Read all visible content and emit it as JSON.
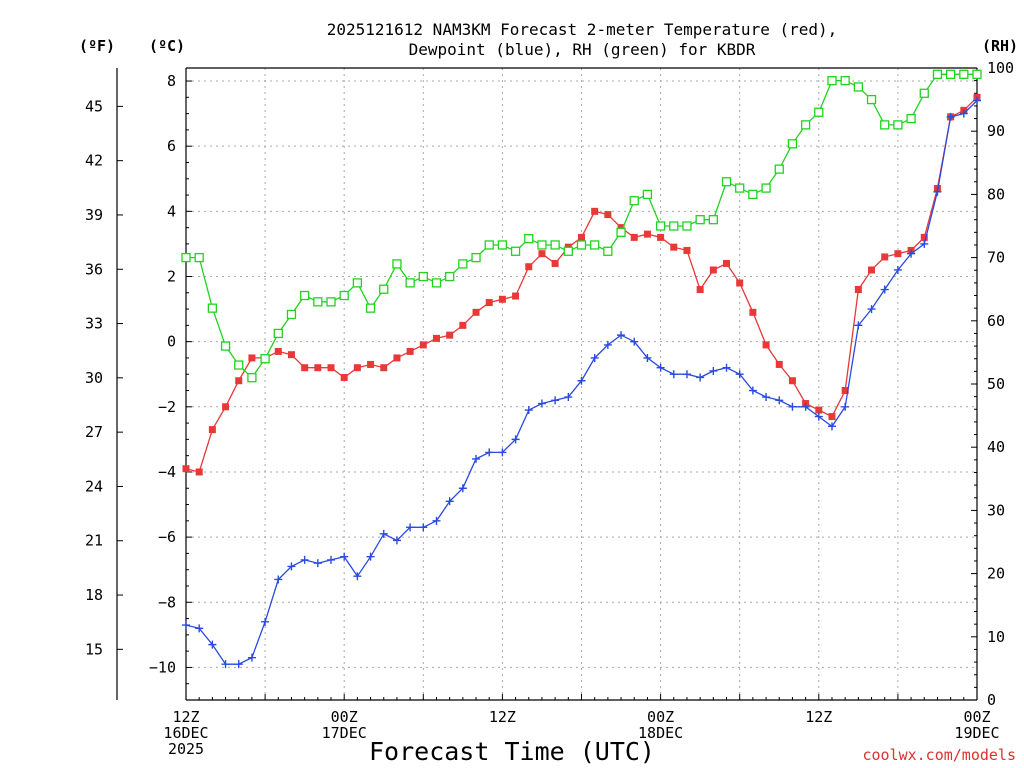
{
  "chart_data": {
    "type": "line",
    "title_lines": [
      "2025121612 NAM3KM Forecast 2-meter Temperature (red),",
      "Dewpoint (blue), RH (green) for KBDR"
    ],
    "xlabel": "Forecast Time (UTC)",
    "credit": "coolwx.com/models",
    "units": {
      "fahrenheit": "(ºF)",
      "celsius": "(ºC)",
      "rh": "(RH)"
    },
    "hours_range": [
      0,
      60
    ],
    "x_ticks": [
      {
        "hour": 0,
        "lines": [
          "12Z",
          "16DEC",
          "2025"
        ]
      },
      {
        "hour": 12,
        "lines": [
          "00Z",
          "17DEC"
        ]
      },
      {
        "hour": 24,
        "lines": [
          "12Z"
        ]
      },
      {
        "hour": 36,
        "lines": [
          "00Z",
          "18DEC"
        ]
      },
      {
        "hour": 48,
        "lines": [
          "12Z"
        ]
      },
      {
        "hour": 60,
        "lines": [
          "00Z",
          "19DEC"
        ]
      }
    ],
    "celsius_axis": {
      "range": [
        -11,
        8.4
      ],
      "ticks": [
        8,
        6,
        4,
        2,
        0,
        -2,
        -4,
        -6,
        -8,
        -10
      ],
      "tick_labels": [
        "8",
        "6",
        "4",
        "2",
        "0",
        "−2",
        "−4",
        "−6",
        "−8",
        "−10"
      ]
    },
    "fahrenheit_axis": {
      "ticks": [
        45,
        42,
        39,
        36,
        33,
        30,
        27,
        24,
        21,
        18,
        15
      ]
    },
    "rh_axis": {
      "range": [
        0,
        100
      ],
      "ticks": [
        100,
        90,
        80,
        70,
        60,
        50,
        40,
        30,
        20,
        10,
        0
      ]
    },
    "series": [
      {
        "name": "2-meter Temperature (°C)",
        "color": "#e83838",
        "marker": "square-filled",
        "axis": "celsius",
        "values": [
          -3.9,
          -4.0,
          -2.7,
          -2.0,
          -1.2,
          -0.5,
          -0.5,
          -0.3,
          -0.4,
          -0.8,
          -0.8,
          -0.8,
          -1.1,
          -0.8,
          -0.7,
          -0.8,
          -0.5,
          -0.3,
          -0.1,
          0.1,
          0.2,
          0.5,
          0.9,
          1.2,
          1.3,
          1.4,
          2.3,
          2.7,
          2.4,
          2.9,
          3.2,
          4.0,
          3.9,
          3.5,
          3.2,
          3.3,
          3.2,
          2.9,
          2.8,
          1.6,
          2.2,
          2.4,
          1.8,
          0.9,
          -0.1,
          -0.7,
          -1.2,
          -1.9,
          -2.1,
          -2.3,
          -1.5,
          1.6,
          2.2,
          2.6,
          2.7,
          2.8,
          3.2,
          4.7,
          6.9,
          7.1,
          7.5
        ]
      },
      {
        "name": "Dewpoint (°C)",
        "color": "#2a4ae0",
        "marker": "plus",
        "axis": "celsius",
        "values": [
          -8.7,
          -8.8,
          -9.3,
          -9.9,
          -9.9,
          -9.7,
          -8.6,
          -7.3,
          -6.9,
          -6.7,
          -6.8,
          -6.7,
          -6.6,
          -7.2,
          -6.6,
          -5.9,
          -6.1,
          -5.7,
          -5.7,
          -5.5,
          -4.9,
          -4.5,
          -3.6,
          -3.4,
          -3.4,
          -3.0,
          -2.1,
          -1.9,
          -1.8,
          -1.7,
          -1.2,
          -0.5,
          -0.1,
          0.2,
          0.0,
          -0.5,
          -0.8,
          -1.0,
          -1.0,
          -1.1,
          -0.9,
          -0.8,
          -1.0,
          -1.5,
          -1.7,
          -1.8,
          -2.0,
          -2.0,
          -2.3,
          -2.6,
          -2.0,
          0.5,
          1.0,
          1.6,
          2.2,
          2.7,
          3.0,
          4.6,
          6.9,
          7.0,
          7.4
        ]
      },
      {
        "name": "Relative Humidity (%)",
        "color": "#1fd41f",
        "marker": "square-open",
        "axis": "rh",
        "values": [
          70,
          70,
          62,
          56,
          53,
          51,
          54,
          58,
          61,
          64,
          63,
          63,
          64,
          66,
          62,
          65,
          69,
          66,
          67,
          66,
          67,
          69,
          70,
          72,
          72,
          71,
          73,
          72,
          72,
          71,
          72,
          72,
          71,
          74,
          79,
          80,
          75,
          75,
          75,
          76,
          76,
          82,
          81,
          80,
          81,
          84,
          88,
          91,
          93,
          98,
          98,
          97,
          95,
          91,
          91,
          92,
          96,
          99,
          99,
          99,
          99
        ]
      }
    ]
  }
}
